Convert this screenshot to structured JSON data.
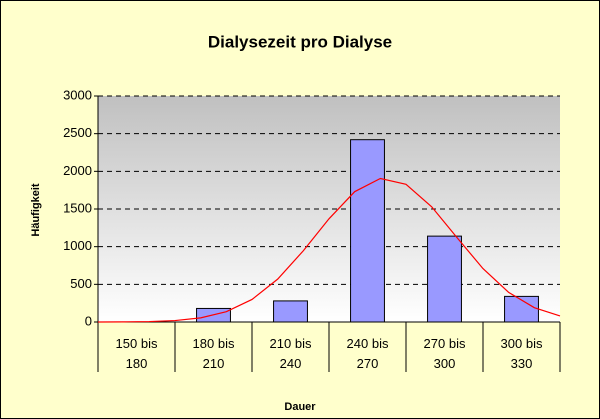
{
  "chart_data": {
    "type": "bar",
    "title": "Dialysezeit pro Dialyse",
    "x_label": "Dauer",
    "y_label": "Häufigkeit",
    "categories": [
      "150 bis 180",
      "180 bis 210",
      "210 bis 240",
      "240 bis 270",
      "270 bis 300",
      "300 bis 330"
    ],
    "values": [
      0,
      180,
      280,
      2420,
      1140,
      340
    ],
    "color": "#9999ff",
    "ylim": [
      0,
      3000
    ],
    "yticks": [
      0,
      500,
      1000,
      1500,
      2000,
      2500,
      3000
    ],
    "grid": true,
    "overlay": {
      "type": "line",
      "color": "#ff0000",
      "x": [
        150,
        160,
        170,
        180,
        190,
        200,
        210,
        220,
        230,
        240,
        250,
        260,
        270,
        280,
        290,
        300,
        310,
        320,
        330
      ],
      "values": [
        0,
        2,
        6,
        19,
        55,
        137,
        299,
        569,
        946,
        1370,
        1730,
        1905,
        1828,
        1530,
        1115,
        709,
        393,
        190,
        80
      ]
    }
  }
}
